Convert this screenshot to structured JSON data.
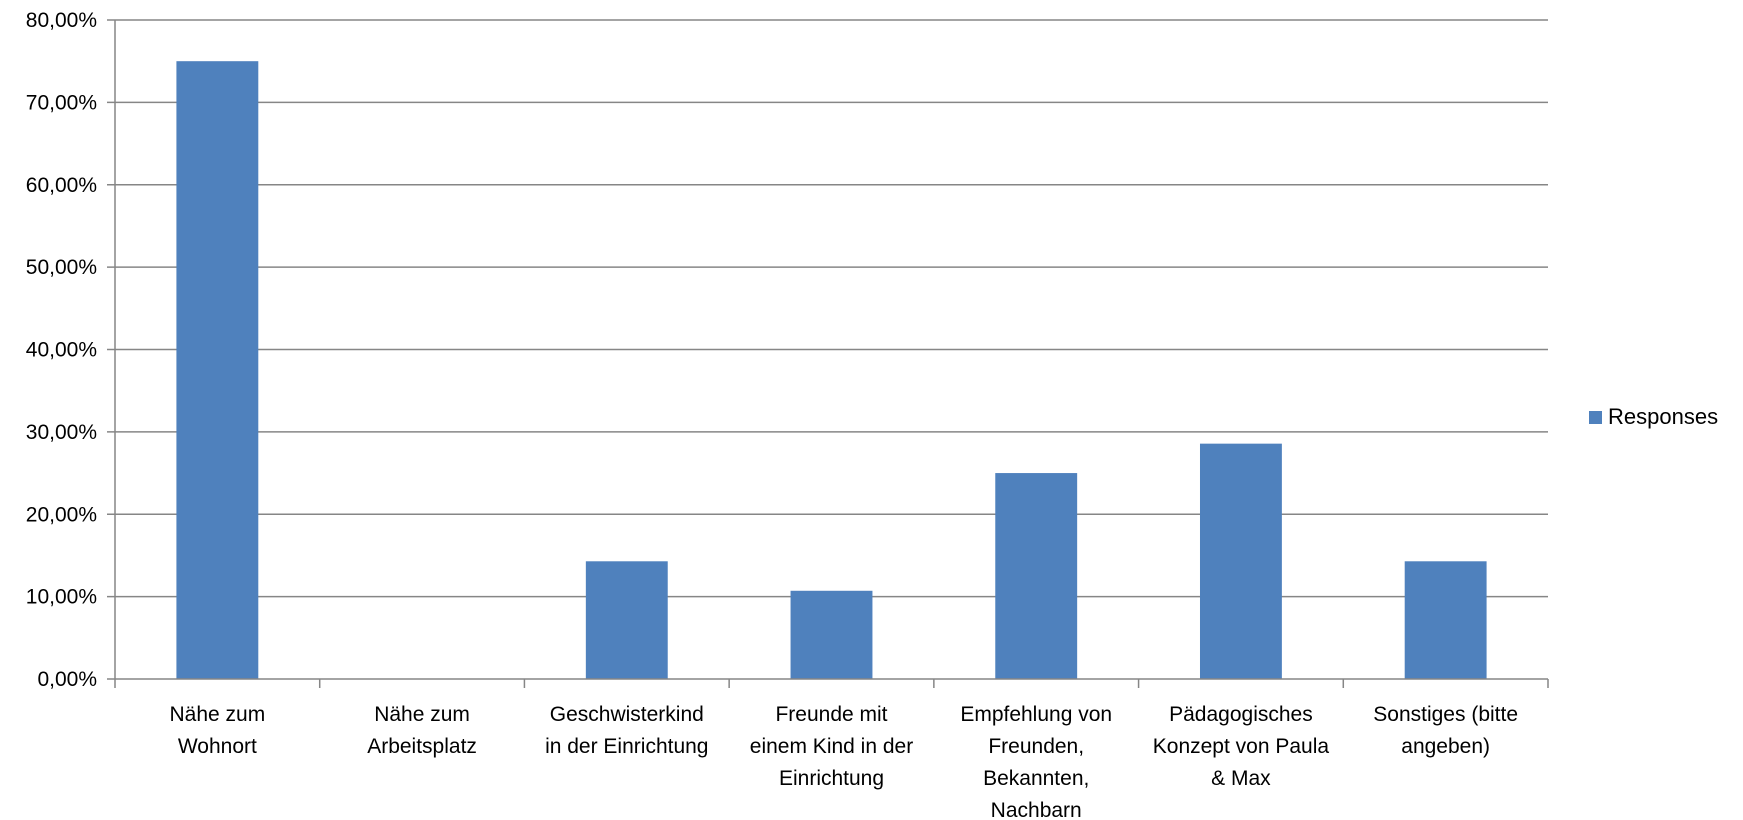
{
  "chart_data": {
    "type": "bar",
    "categories": [
      [
        "Nähe zum",
        "Wohnort"
      ],
      [
        "Nähe zum",
        "Arbeitsplatz"
      ],
      [
        "Geschwisterkind",
        "in der Einrichtung"
      ],
      [
        "Freunde mit",
        "einem Kind in der",
        "Einrichtung"
      ],
      [
        "Empfehlung von",
        "Freunden,",
        "Bekannten,",
        "Nachbarn"
      ],
      [
        "Pädagogisches",
        "Konzept von Paula",
        "& Max"
      ],
      [
        "Sonstiges (bitte",
        "angeben)"
      ]
    ],
    "series": [
      {
        "name": "Responses",
        "values": [
          75.0,
          0.0,
          14.29,
          10.71,
          25.0,
          28.57,
          14.29
        ],
        "color": "#4F81BD"
      }
    ],
    "ylim": [
      0,
      80
    ],
    "yticks": [
      "0,00%",
      "10,00%",
      "20,00%",
      "30,00%",
      "40,00%",
      "50,00%",
      "60,00%",
      "70,00%",
      "80,00%"
    ],
    "grid": true,
    "legend_position": "right"
  },
  "legend": {
    "label": "Responses",
    "color": "#4F81BD"
  }
}
